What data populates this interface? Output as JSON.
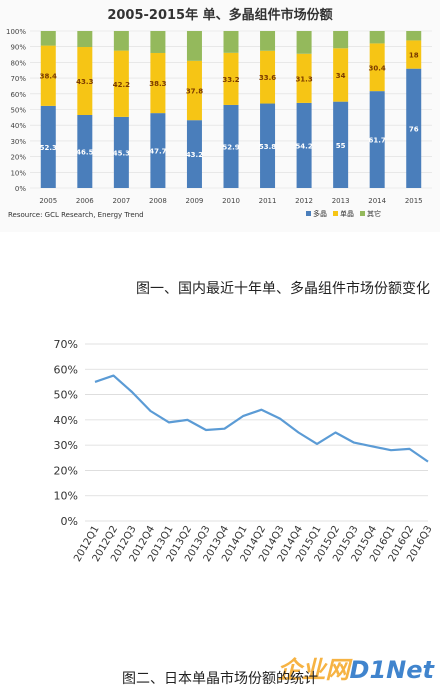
{
  "chart_data": [
    {
      "type": "bar",
      "stacked": true,
      "percent": true,
      "title": "2005-2015年 单、多晶组件市场份额",
      "categories": [
        "2005",
        "2006",
        "2007",
        "2008",
        "2009",
        "2010",
        "2011",
        "2012",
        "2013",
        "2014",
        "2015"
      ],
      "series": [
        {
          "name": "多晶",
          "color": "#4a7ebb",
          "values": [
            52.3,
            46.5,
            45.3,
            47.7,
            43.2,
            52.9,
            53.8,
            54.2,
            55,
            61.7,
            76
          ]
        },
        {
          "name": "单晶",
          "color": "#f6c515",
          "values": [
            38.4,
            43.3,
            42.2,
            38.3,
            37.8,
            33.2,
            33.6,
            31.3,
            34,
            30.4,
            18
          ]
        },
        {
          "name": "其它",
          "color": "#94b95c",
          "values": [
            9.3,
            10.2,
            12.5,
            14.0,
            19.0,
            13.9,
            12.6,
            14.5,
            11,
            7.9,
            6
          ]
        }
      ],
      "ylim": [
        0,
        100
      ],
      "yticks": [
        "0%",
        "10%",
        "20%",
        "30%",
        "40%",
        "50%",
        "60%",
        "70%",
        "80%",
        "90%",
        "100%"
      ],
      "legend_position": "bottom-right",
      "source": "Resource: GCL Research, Energy Trend"
    },
    {
      "type": "line",
      "title": "",
      "categories": [
        "2012Q1",
        "2012Q2",
        "2012Q3",
        "2012Q4",
        "2013Q1",
        "2013Q2",
        "2013Q3",
        "2013Q4",
        "2014Q1",
        "2014Q2",
        "2014Q3",
        "2014Q4",
        "2015Q1",
        "2015Q2",
        "2015Q3",
        "2015Q4",
        "2016Q1",
        "2016Q2",
        "2016Q3"
      ],
      "series": [
        {
          "color": "#5b9bd5",
          "values": [
            55,
            57.5,
            51,
            43.5,
            39,
            40,
            36,
            36.5,
            41.5,
            44,
            40.5,
            35,
            30.5,
            35,
            31,
            29.5,
            28,
            28.5,
            23.5
          ]
        }
      ],
      "ylim": [
        0,
        70
      ],
      "yticks": [
        "0%",
        "10%",
        "20%",
        "30%",
        "40%",
        "50%",
        "60%",
        "70%"
      ],
      "grid": true
    }
  ],
  "captions": {
    "figure1": "图一、国内最近十年单、多晶组件市场份额变化",
    "figure2": "图二、日本单晶市场份额的统计"
  },
  "watermark": {
    "part1": "企业网",
    "part2": "D1Net"
  }
}
